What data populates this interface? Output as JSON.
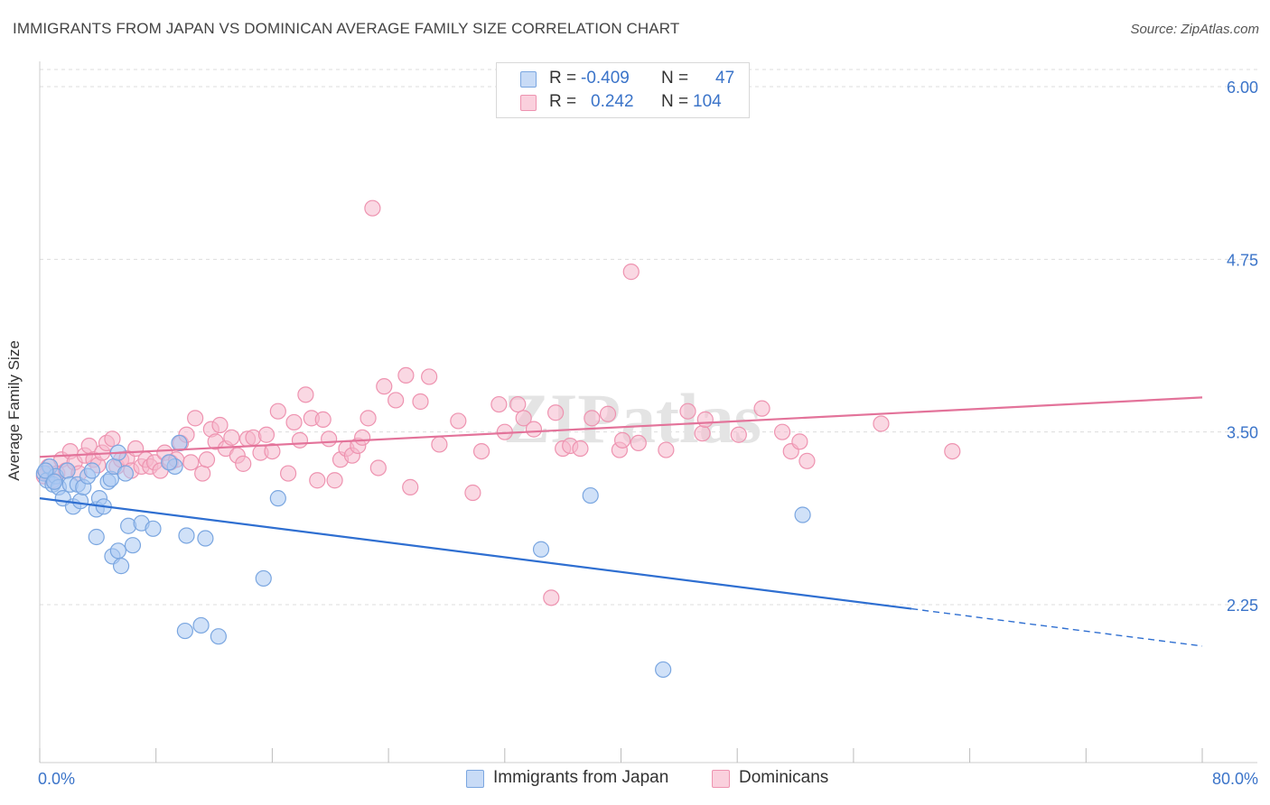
{
  "header": {
    "title": "IMMIGRANTS FROM JAPAN VS DOMINICAN AVERAGE FAMILY SIZE CORRELATION CHART",
    "source": "Source: ZipAtlas.com"
  },
  "legend": {
    "rows": [
      {
        "r_label": "R =",
        "r_value": "-0.409",
        "n_label": "N =",
        "n_value": "47"
      },
      {
        "r_label": "R =",
        "r_value": "0.242",
        "n_label": "N =",
        "n_value": "104"
      }
    ]
  },
  "bottom_legend": [
    "Immigrants from Japan",
    "Dominicans"
  ],
  "watermark": "ZIPatlas",
  "colors": {
    "japan_fill": "#aac8f2",
    "japan_stroke": "#7aa6e0",
    "japan_line": "#2f6fd1",
    "dominican_fill": "#f6b8cc",
    "dominican_stroke": "#ee93b0",
    "dominican_line": "#e3739a",
    "value_text": "#3b74c9",
    "grid": "#dddddd"
  },
  "chart_data": {
    "type": "scatter",
    "title": "IMMIGRANTS FROM JAPAN VS DOMINICAN AVERAGE FAMILY SIZE CORRELATION CHART",
    "xlabel": "",
    "ylabel": "Average Family Size",
    "xlim": [
      0,
      80
    ],
    "ylim": [
      1.5,
      6.1
    ],
    "x_tick_labels": [
      "0.0%",
      "80.0%"
    ],
    "y_ticks": [
      2.25,
      3.5,
      4.75,
      6.0
    ],
    "y_tick_labels": [
      "2.25",
      "3.50",
      "4.75",
      "6.00"
    ],
    "grid": "horizontal dashed",
    "legend_position": "top-center",
    "series": [
      {
        "name": "Immigrants from Japan",
        "r": -0.409,
        "n": 47,
        "points": [
          [
            0.3,
            3.2
          ],
          [
            0.5,
            3.15
          ],
          [
            0.7,
            3.25
          ],
          [
            0.9,
            3.12
          ],
          [
            1.1,
            3.18
          ],
          [
            1.3,
            3.1
          ],
          [
            1.6,
            3.02
          ],
          [
            1.9,
            3.22
          ],
          [
            2.1,
            3.12
          ],
          [
            2.3,
            2.96
          ],
          [
            2.6,
            3.12
          ],
          [
            2.8,
            3.0
          ],
          [
            3.0,
            3.1
          ],
          [
            3.3,
            3.18
          ],
          [
            3.6,
            3.22
          ],
          [
            3.9,
            2.94
          ],
          [
            4.1,
            3.02
          ],
          [
            4.4,
            2.96
          ],
          [
            4.7,
            3.14
          ],
          [
            4.9,
            3.16
          ],
          [
            5.1,
            3.25
          ],
          [
            5.4,
            3.35
          ],
          [
            3.9,
            2.74
          ],
          [
            5.0,
            2.6
          ],
          [
            5.4,
            2.64
          ],
          [
            5.6,
            2.53
          ],
          [
            6.1,
            2.82
          ],
          [
            6.4,
            2.68
          ],
          [
            7.0,
            2.84
          ],
          [
            7.8,
            2.8
          ],
          [
            9.3,
            3.25
          ],
          [
            9.6,
            3.42
          ],
          [
            5.9,
            3.2
          ],
          [
            8.9,
            3.28
          ],
          [
            10.1,
            2.75
          ],
          [
            11.4,
            2.73
          ],
          [
            10.0,
            2.06
          ],
          [
            11.1,
            2.1
          ],
          [
            12.3,
            2.02
          ],
          [
            15.4,
            2.44
          ],
          [
            16.4,
            3.02
          ],
          [
            34.5,
            2.65
          ],
          [
            37.9,
            3.04
          ],
          [
            42.9,
            1.78
          ],
          [
            52.5,
            2.9
          ],
          [
            0.4,
            3.22
          ],
          [
            1.0,
            3.14
          ]
        ]
      },
      {
        "name": "Dominicans",
        "r": 0.242,
        "n": 104,
        "points": [
          [
            0.3,
            3.18
          ],
          [
            0.6,
            3.25
          ],
          [
            0.9,
            3.15
          ],
          [
            1.2,
            3.2
          ],
          [
            1.5,
            3.3
          ],
          [
            1.8,
            3.22
          ],
          [
            2.1,
            3.36
          ],
          [
            2.4,
            3.28
          ],
          [
            2.7,
            3.2
          ],
          [
            3.1,
            3.33
          ],
          [
            3.4,
            3.4
          ],
          [
            3.7,
            3.3
          ],
          [
            4.0,
            3.26
          ],
          [
            4.3,
            3.35
          ],
          [
            4.6,
            3.42
          ],
          [
            5.0,
            3.45
          ],
          [
            5.3,
            3.25
          ],
          [
            5.6,
            3.3
          ],
          [
            6.0,
            3.31
          ],
          [
            6.3,
            3.22
          ],
          [
            6.6,
            3.38
          ],
          [
            7.0,
            3.25
          ],
          [
            7.3,
            3.3
          ],
          [
            7.6,
            3.25
          ],
          [
            7.9,
            3.28
          ],
          [
            8.3,
            3.22
          ],
          [
            8.6,
            3.35
          ],
          [
            9.0,
            3.28
          ],
          [
            9.4,
            3.3
          ],
          [
            9.7,
            3.42
          ],
          [
            10.1,
            3.48
          ],
          [
            10.4,
            3.28
          ],
          [
            10.7,
            3.6
          ],
          [
            11.2,
            3.2
          ],
          [
            11.5,
            3.3
          ],
          [
            11.8,
            3.52
          ],
          [
            12.1,
            3.43
          ],
          [
            12.4,
            3.55
          ],
          [
            12.8,
            3.38
          ],
          [
            13.2,
            3.46
          ],
          [
            13.6,
            3.33
          ],
          [
            14.0,
            3.27
          ],
          [
            14.3,
            3.45
          ],
          [
            14.7,
            3.46
          ],
          [
            15.2,
            3.35
          ],
          [
            15.6,
            3.48
          ],
          [
            16.0,
            3.36
          ],
          [
            16.4,
            3.65
          ],
          [
            17.1,
            3.2
          ],
          [
            17.5,
            3.57
          ],
          [
            17.9,
            3.44
          ],
          [
            18.3,
            3.77
          ],
          [
            18.7,
            3.6
          ],
          [
            19.1,
            3.15
          ],
          [
            19.5,
            3.59
          ],
          [
            19.9,
            3.45
          ],
          [
            20.3,
            3.15
          ],
          [
            20.7,
            3.3
          ],
          [
            21.1,
            3.38
          ],
          [
            21.5,
            3.33
          ],
          [
            21.9,
            3.4
          ],
          [
            22.2,
            3.46
          ],
          [
            22.6,
            3.6
          ],
          [
            22.9,
            5.12
          ],
          [
            23.3,
            3.24
          ],
          [
            23.7,
            3.83
          ],
          [
            24.5,
            3.73
          ],
          [
            25.2,
            3.91
          ],
          [
            25.5,
            3.1
          ],
          [
            26.2,
            3.72
          ],
          [
            26.8,
            3.9
          ],
          [
            27.5,
            3.41
          ],
          [
            28.8,
            3.58
          ],
          [
            29.8,
            3.06
          ],
          [
            30.4,
            3.36
          ],
          [
            31.6,
            3.7
          ],
          [
            32.0,
            3.5
          ],
          [
            32.9,
            3.7
          ],
          [
            33.3,
            3.6
          ],
          [
            34.0,
            3.52
          ],
          [
            35.2,
            2.3
          ],
          [
            35.5,
            3.64
          ],
          [
            36.0,
            3.38
          ],
          [
            36.5,
            3.4
          ],
          [
            37.2,
            3.38
          ],
          [
            38.0,
            3.6
          ],
          [
            39.1,
            3.63
          ],
          [
            39.9,
            3.37
          ],
          [
            40.1,
            3.44
          ],
          [
            40.7,
            4.66
          ],
          [
            41.2,
            3.42
          ],
          [
            43.1,
            3.37
          ],
          [
            44.6,
            3.65
          ],
          [
            45.6,
            3.49
          ],
          [
            45.8,
            3.59
          ],
          [
            48.1,
            3.48
          ],
          [
            49.7,
            3.67
          ],
          [
            51.1,
            3.5
          ],
          [
            51.7,
            3.36
          ],
          [
            52.3,
            3.43
          ],
          [
            52.8,
            3.29
          ],
          [
            57.9,
            3.56
          ],
          [
            62.8,
            3.36
          ],
          [
            0.5,
            3.2
          ]
        ]
      }
    ],
    "trendlines": [
      {
        "series": "Immigrants from Japan",
        "x0": 0,
        "y0": 3.02,
        "x1": 60,
        "y1": 2.22,
        "dashed_x1": 80,
        "dashed_y1": 1.95
      },
      {
        "series": "Dominicans",
        "x0": 0,
        "y0": 3.32,
        "x1": 80,
        "y1": 3.75
      }
    ]
  }
}
